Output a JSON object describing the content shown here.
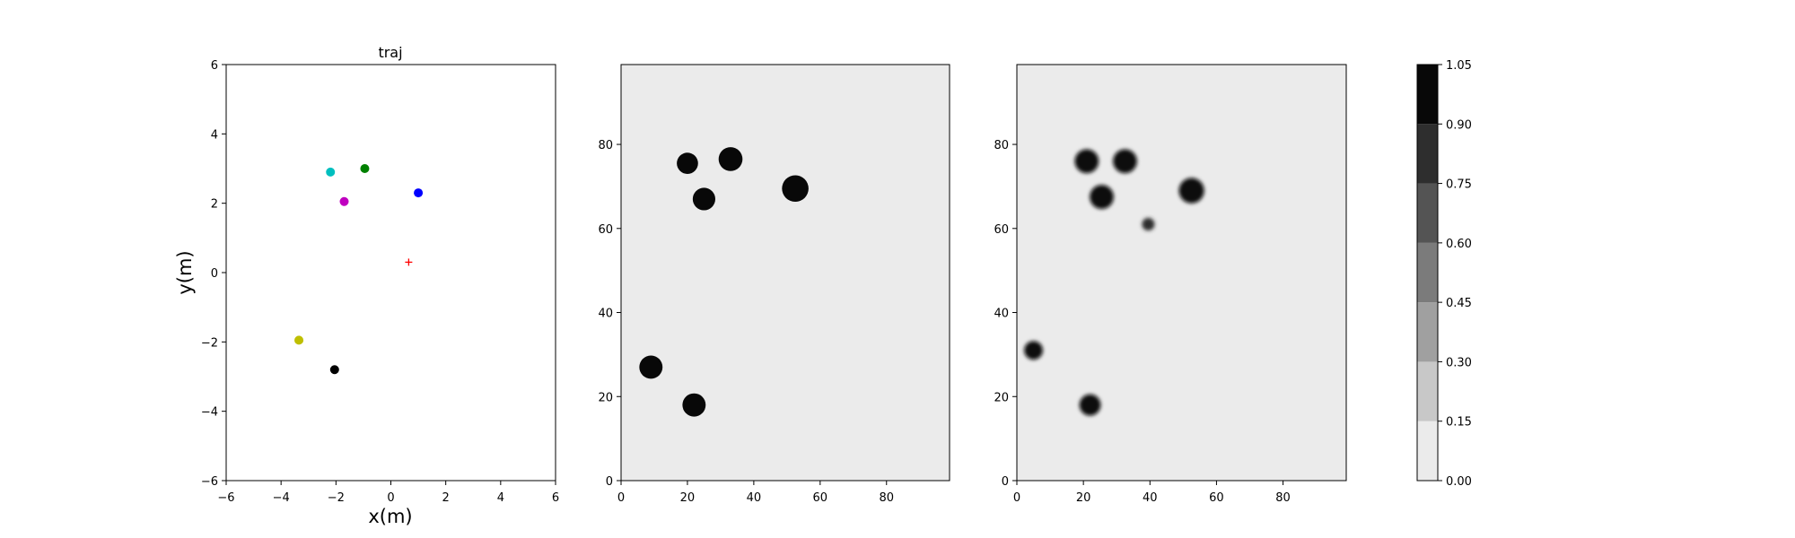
{
  "chart_data": [
    {
      "type": "scatter",
      "title": "traj",
      "xlabel": "x(m)",
      "ylabel": "y(m)",
      "xlim": [
        -6,
        6
      ],
      "ylim": [
        -6,
        6
      ],
      "xticks": [
        -6,
        -4,
        -2,
        0,
        2,
        4,
        6
      ],
      "yticks": [
        -6,
        -4,
        -2,
        0,
        2,
        4,
        6
      ],
      "grid": false,
      "points": [
        {
          "x": -2.2,
          "y": 2.9,
          "color": "#00bfbf",
          "marker": "dot"
        },
        {
          "x": -0.95,
          "y": 3.0,
          "color": "#008000",
          "marker": "dot"
        },
        {
          "x": 1.0,
          "y": 2.3,
          "color": "#0000ff",
          "marker": "dot"
        },
        {
          "x": -1.7,
          "y": 2.05,
          "color": "#bf00bf",
          "marker": "dot"
        },
        {
          "x": -3.35,
          "y": -1.95,
          "color": "#bfbf00",
          "marker": "dot"
        },
        {
          "x": -2.05,
          "y": -2.8,
          "color": "#000000",
          "marker": "dot"
        },
        {
          "x": 0.65,
          "y": 0.3,
          "color": "#ff0000",
          "marker": "plus"
        }
      ]
    },
    {
      "type": "heatmap",
      "xlim": [
        0,
        99
      ],
      "ylim": [
        0,
        99
      ],
      "xticks": [
        0,
        20,
        40,
        60,
        80
      ],
      "yticks": [
        0,
        20,
        40,
        60,
        80
      ],
      "background_level": 0.075,
      "blobs": [
        {
          "x": 20,
          "y": 75.5,
          "radius": 3.2,
          "value": 1.0,
          "blur": false
        },
        {
          "x": 33,
          "y": 76.5,
          "radius": 3.6,
          "value": 1.0,
          "blur": false
        },
        {
          "x": 25,
          "y": 67,
          "radius": 3.4,
          "value": 1.0,
          "blur": false
        },
        {
          "x": 52.5,
          "y": 69.5,
          "radius": 4.0,
          "value": 1.0,
          "blur": false
        },
        {
          "x": 9,
          "y": 27,
          "radius": 3.5,
          "value": 1.0,
          "blur": false
        },
        {
          "x": 22,
          "y": 18,
          "radius": 3.5,
          "value": 1.0,
          "blur": false
        }
      ]
    },
    {
      "type": "heatmap",
      "xlim": [
        0,
        99
      ],
      "ylim": [
        0,
        99
      ],
      "xticks": [
        0,
        20,
        40,
        60,
        80
      ],
      "yticks": [
        0,
        20,
        40,
        60,
        80
      ],
      "background_level": 0.075,
      "blobs": [
        {
          "x": 21,
          "y": 76,
          "radius": 3.6,
          "value": 1.0,
          "blur": true
        },
        {
          "x": 32.5,
          "y": 76,
          "radius": 3.6,
          "value": 1.0,
          "blur": true
        },
        {
          "x": 25.5,
          "y": 67.5,
          "radius": 3.6,
          "value": 1.0,
          "blur": true
        },
        {
          "x": 52.5,
          "y": 69,
          "radius": 3.8,
          "value": 1.0,
          "blur": true
        },
        {
          "x": 39.5,
          "y": 61,
          "radius": 1.9,
          "value": 0.8,
          "blur": true
        },
        {
          "x": 5,
          "y": 31,
          "radius": 2.8,
          "value": 1.0,
          "blur": true
        },
        {
          "x": 22,
          "y": 18,
          "radius": 3.2,
          "value": 1.0,
          "blur": true
        }
      ]
    },
    {
      "type": "colorbar",
      "levels": [
        0.0,
        0.15,
        0.3,
        0.45,
        0.6,
        0.75,
        0.9,
        1.05
      ],
      "tick_labels": [
        "0.00",
        "0.15",
        "0.30",
        "0.45",
        "0.60",
        "0.75",
        "0.90",
        "1.05"
      ],
      "colors": [
        "#ebebeb",
        "#c8c8c8",
        "#a0a0a0",
        "#7b7b7b",
        "#545454",
        "#2e2e2e",
        "#080808"
      ]
    }
  ]
}
